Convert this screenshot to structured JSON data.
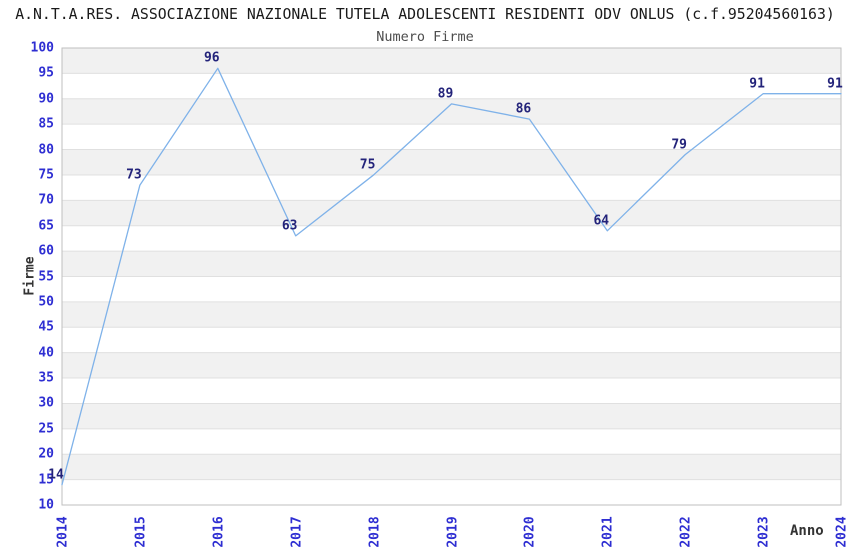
{
  "title": "A.N.T.A.RES. ASSOCIAZIONE NAZIONALE TUTELA ADOLESCENTI RESIDENTI ODV ONLUS (c.f.95204560163)",
  "subtitle": "Numero Firme",
  "chart_data": {
    "type": "line",
    "title": "A.N.T.A.RES. ASSOCIAZIONE NAZIONALE TUTELA ADOLESCENTI RESIDENTI ODV ONLUS (c.f.95204560163)",
    "subtitle": "Numero Firme",
    "xlabel": "Anno",
    "ylabel": "Firme",
    "categories": [
      "2014",
      "2015",
      "2016",
      "2017",
      "2018",
      "2019",
      "2020",
      "2021",
      "2022",
      "2023",
      "2024"
    ],
    "values": [
      14,
      73,
      96,
      63,
      75,
      89,
      86,
      64,
      79,
      91,
      91
    ],
    "ylim": [
      10,
      100
    ],
    "ytick_step": 5,
    "grid": "horizontal-bands-every-5-units",
    "legend": false,
    "point_labels_visible": true
  },
  "colors": {
    "line": "#7fb2e9",
    "tick_label": "#2e2ed2",
    "point_label": "#23237a",
    "band_gray": "#f1f1f1",
    "band_white": "#ffffff",
    "gridline": "#e0e0e0",
    "plot_border": "#bfbfbf",
    "title_text": "#1a1a1a",
    "subtitle_text": "#4d4d4d",
    "axis_title_text": "#333333",
    "background": "#ffffff"
  }
}
